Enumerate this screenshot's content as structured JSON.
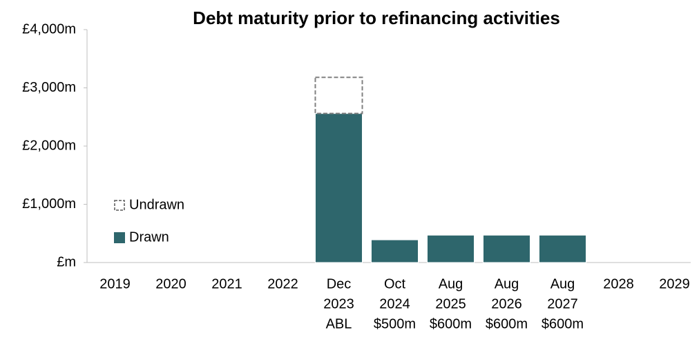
{
  "chart_data": {
    "type": "stacked-bar",
    "title": "Debt maturity prior to refinancing activities",
    "categories": [
      [
        "2019"
      ],
      [
        "2020"
      ],
      [
        "2021"
      ],
      [
        "2022"
      ],
      [
        "Dec",
        "2023",
        "ABL"
      ],
      [
        "Oct",
        "2024",
        "$500m"
      ],
      [
        "Aug",
        "2025",
        "$600m"
      ],
      [
        "Aug",
        "2026",
        "$600m"
      ],
      [
        "Aug",
        "2027",
        "$600m"
      ],
      [
        "2028"
      ],
      [
        "2029"
      ]
    ],
    "series": [
      {
        "name": "Drawn",
        "color": "#2e666c",
        "values": [
          null,
          null,
          null,
          null,
          2560,
          390,
          470,
          470,
          470,
          null,
          null
        ]
      },
      {
        "name": "Undrawn",
        "color": "#808080",
        "style": "dashed",
        "values": [
          null,
          null,
          null,
          null,
          620,
          null,
          null,
          null,
          null,
          null,
          null
        ]
      }
    ],
    "ylim": [
      0,
      4000
    ],
    "yticks": [
      {
        "value": 0,
        "label": "£m"
      },
      {
        "value": 1000,
        "label": "£1,000m"
      },
      {
        "value": 2000,
        "label": "£2,000m"
      },
      {
        "value": 3000,
        "label": "£3,000m"
      },
      {
        "value": 4000,
        "label": "£4,000m"
      }
    ],
    "legend": "left"
  }
}
